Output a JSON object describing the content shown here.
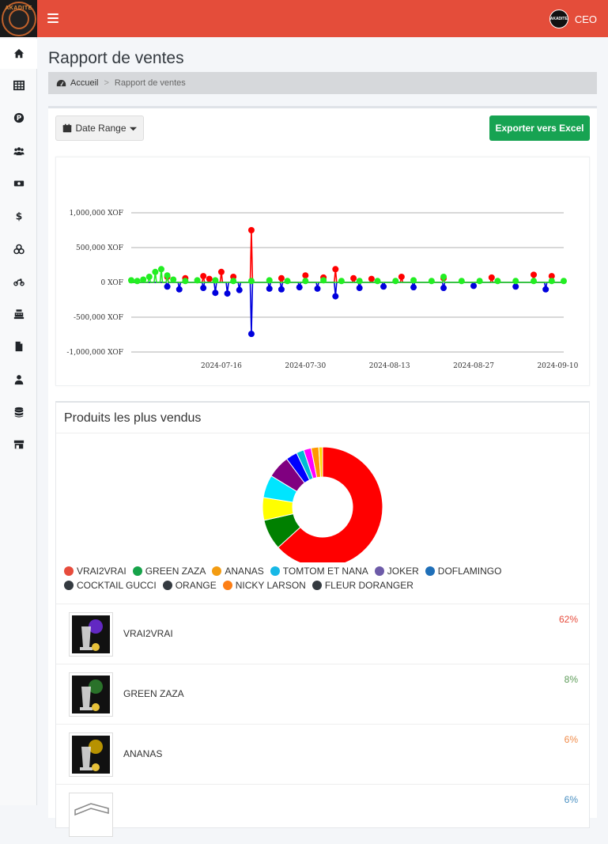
{
  "header": {
    "logo_text": "AKADITE",
    "user_avatar_text": "AKADITE",
    "user_role": "CEO"
  },
  "sidebar": {
    "items": [
      {
        "icon": "home-icon"
      },
      {
        "icon": "table-icon"
      },
      {
        "icon": "parking-icon"
      },
      {
        "icon": "users-icon"
      },
      {
        "icon": "money-bill-icon"
      },
      {
        "icon": "dollar-icon"
      },
      {
        "icon": "boxes-icon"
      },
      {
        "icon": "motorcycle-icon"
      },
      {
        "icon": "cash-register-icon"
      },
      {
        "icon": "file-icon"
      },
      {
        "icon": "user-icon"
      },
      {
        "icon": "database-icon"
      },
      {
        "icon": "store-icon"
      }
    ]
  },
  "page": {
    "title": "Rapport de ventes",
    "breadcrumb": {
      "home": "Accueil",
      "separator": ">",
      "current": "Rapport de ventes"
    }
  },
  "toolbar": {
    "date_range_label": "Date Range",
    "export_label": "Exporter vers Excel"
  },
  "chart_data": [
    {
      "type": "line",
      "title": "",
      "y_ticks": [
        "1,000,000 XOF",
        "500,000 XOF",
        "0 XOF",
        "-500,000 XOF",
        "-1,000,000 XOF"
      ],
      "ylim": [
        -1000000,
        1000000
      ],
      "x_ticks": [
        "2024-07-16",
        "2024-07-30",
        "2024-08-13",
        "2024-08-27",
        "2024-09-10"
      ],
      "xlim": [
        "2024-07-01",
        "2024-09-11"
      ],
      "grid": true,
      "series": [
        {
          "color": "#ff0000",
          "x": [
            "2024-07-07",
            "2024-07-10",
            "2024-07-13",
            "2024-07-14",
            "2024-07-16",
            "2024-07-18",
            "2024-07-21",
            "2024-07-26",
            "2024-07-30",
            "2024-08-02",
            "2024-08-04",
            "2024-08-07",
            "2024-08-10",
            "2024-08-15",
            "2024-08-22",
            "2024-08-30",
            "2024-09-06",
            "2024-09-09"
          ],
          "values": [
            80000,
            60000,
            90000,
            50000,
            150000,
            80000,
            750000,
            60000,
            100000,
            70000,
            190000,
            60000,
            50000,
            80000,
            60000,
            70000,
            110000,
            90000
          ]
        },
        {
          "color": "#0000dd",
          "x": [
            "2024-07-07",
            "2024-07-09",
            "2024-07-13",
            "2024-07-15",
            "2024-07-17",
            "2024-07-19",
            "2024-07-21",
            "2024-07-24",
            "2024-07-26",
            "2024-07-29",
            "2024-08-01",
            "2024-08-04",
            "2024-08-08",
            "2024-08-12",
            "2024-08-17",
            "2024-08-22",
            "2024-08-27",
            "2024-09-03",
            "2024-09-08"
          ],
          "values": [
            -60000,
            -100000,
            -80000,
            -150000,
            -160000,
            -110000,
            -740000,
            -90000,
            -100000,
            -70000,
            -90000,
            -200000,
            -80000,
            -60000,
            -70000,
            -80000,
            -50000,
            -60000,
            -100000
          ]
        },
        {
          "color": "#22ee22",
          "x": [
            "2024-07-01",
            "2024-07-02",
            "2024-07-03",
            "2024-07-04",
            "2024-07-05",
            "2024-07-06",
            "2024-07-07",
            "2024-07-08",
            "2024-07-10",
            "2024-07-12",
            "2024-07-15",
            "2024-07-18",
            "2024-07-21",
            "2024-07-24",
            "2024-07-27",
            "2024-07-30",
            "2024-08-02",
            "2024-08-05",
            "2024-08-08",
            "2024-08-11",
            "2024-08-14",
            "2024-08-17",
            "2024-08-20",
            "2024-08-22",
            "2024-08-25",
            "2024-08-28",
            "2024-08-31",
            "2024-09-03",
            "2024-09-06",
            "2024-09-09",
            "2024-09-11"
          ],
          "values": [
            30000,
            20000,
            40000,
            80000,
            150000,
            190000,
            100000,
            40000,
            20000,
            30000,
            30000,
            20000,
            20000,
            30000,
            20000,
            20000,
            30000,
            20000,
            20000,
            20000,
            20000,
            30000,
            20000,
            80000,
            20000,
            20000,
            20000,
            20000,
            20000,
            20000,
            20000
          ]
        }
      ]
    },
    {
      "type": "pie",
      "style": "donut",
      "categories": [
        "VRAI2VRAI",
        "GREEN ZAZA",
        "ANANAS",
        "TOMTOM ET NANA",
        "JOKER",
        "DOFLAMINGO",
        "COCKTAIL GUCCI",
        "ORANGE",
        "NICKY LARSON",
        "FLEUR DORANGER"
      ],
      "values": [
        62,
        8,
        6,
        6,
        6,
        3,
        2,
        2,
        2,
        1
      ],
      "slice_colors": [
        "#ff0000",
        "#008000",
        "#ffff00",
        "#00e5ff",
        "#800080",
        "#0000ff",
        "#00bcd4",
        "#ff00ff",
        "#ff9800",
        "#ffd700"
      ],
      "legend_colors": [
        "#e74c3c",
        "#16a34a",
        "#f39c12",
        "#17b8e6",
        "#6d5ba8",
        "#1f6fb8",
        "#343a40",
        "#343a40",
        "#fd7e14",
        "#343a40"
      ]
    }
  ],
  "top_products": {
    "title": "Produits les plus vendus",
    "items": [
      {
        "name": "VRAI2VRAI",
        "percent": "62%",
        "color": "#e74c3c"
      },
      {
        "name": "GREEN ZAZA",
        "percent": "8%",
        "color": "#5d9c59"
      },
      {
        "name": "ANANAS",
        "percent": "6%",
        "color": "#f08c4a"
      },
      {
        "name": "",
        "percent": "6%",
        "color": "#4a90c2"
      }
    ]
  }
}
